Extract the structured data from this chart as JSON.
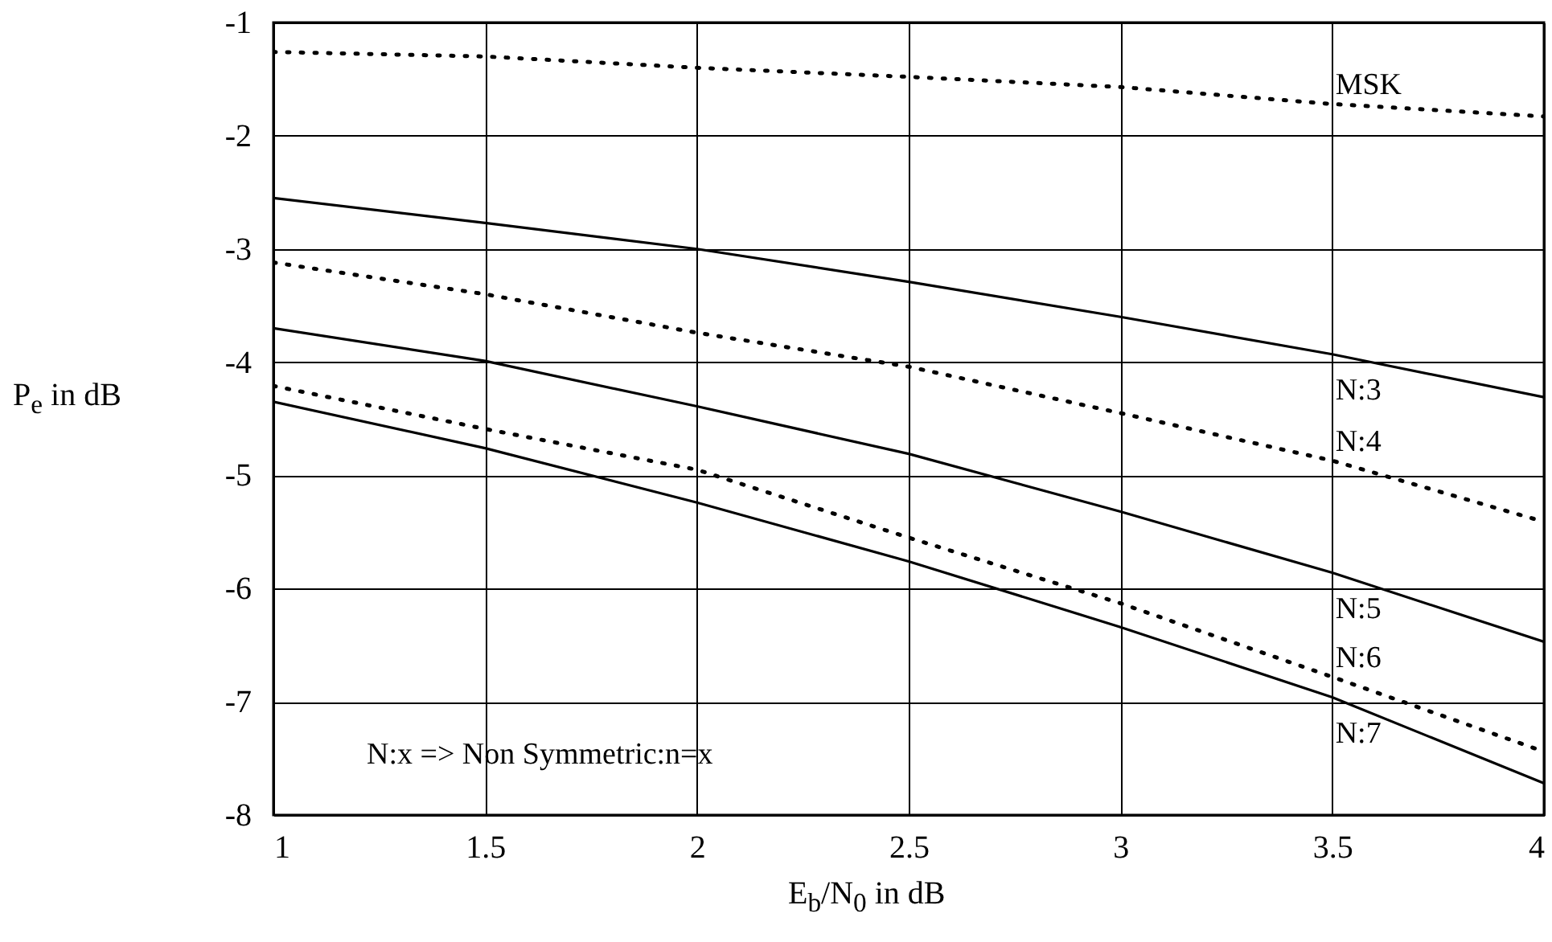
{
  "chart_data": {
    "type": "line",
    "xlabel": "E$_{b}$/N$_{0}$ in dB",
    "ylabel": "P$_{e}$ in dB",
    "x": [
      1,
      1.5,
      2,
      2.5,
      3,
      3.5,
      4
    ],
    "xlim": [
      1,
      4
    ],
    "xticks": [
      1,
      1.5,
      2,
      2.5,
      3,
      3.5,
      4
    ],
    "ylim": [
      -8,
      -1
    ],
    "yticks": [
      -8,
      -7,
      -6,
      -5,
      -4,
      -3,
      -2,
      -1
    ],
    "grid": true,
    "annotations": [
      "N:x => Non Symmetric:n=x"
    ],
    "series": [
      {
        "name": "MSK",
        "color": "#000000",
        "line_style": "dotted",
        "values": [
          -1.26,
          -1.3,
          -1.4,
          -1.48,
          -1.57,
          -1.72,
          -1.83
        ]
      },
      {
        "name": "N:3",
        "color": "#000000",
        "line_style": "solid",
        "values": [
          -2.55,
          -2.77,
          -3.0,
          -3.29,
          -3.6,
          -3.93,
          -4.31
        ]
      },
      {
        "name": "N:4",
        "color": "#000000",
        "line_style": "dotted",
        "values": [
          -3.12,
          -3.4,
          -3.74,
          -4.04,
          -4.45,
          -4.87,
          -5.41
        ]
      },
      {
        "name": "N:5",
        "color": "#000000",
        "line_style": "solid",
        "values": [
          -3.7,
          -3.99,
          -4.39,
          -4.81,
          -5.32,
          -5.86,
          -6.47
        ]
      },
      {
        "name": "N:6",
        "color": "#000000",
        "line_style": "dotted",
        "values": [
          -4.21,
          -4.59,
          -4.95,
          -5.55,
          -6.13,
          -6.78,
          -7.44
        ]
      },
      {
        "name": "N:7",
        "color": "#000000",
        "line_style": "solid",
        "values": [
          -4.35,
          -4.76,
          -5.24,
          -5.76,
          -6.34,
          -6.96,
          -7.72
        ]
      }
    ]
  }
}
